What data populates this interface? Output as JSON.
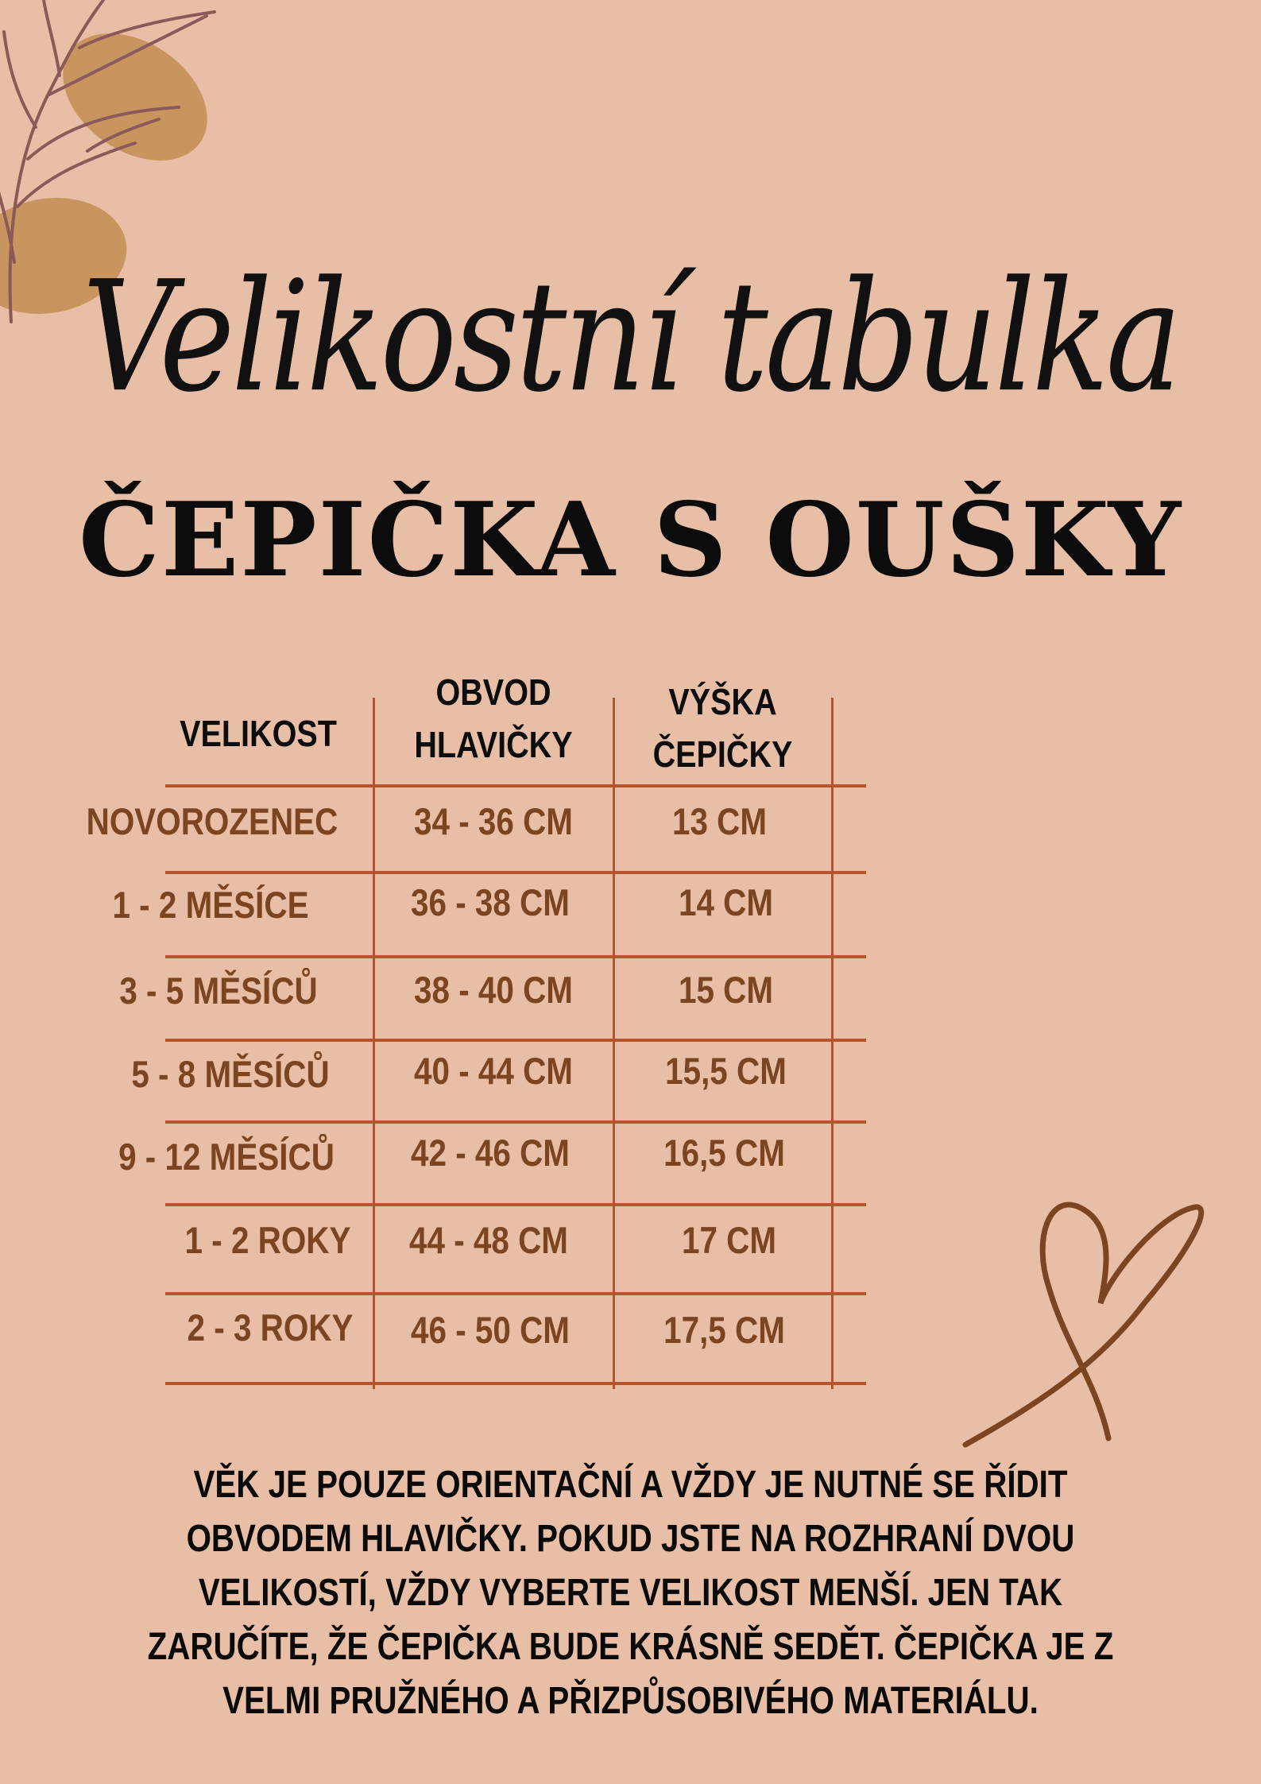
{
  "title": "Velikostní tabulka",
  "subtitle": "ČEPIČKA S OUŠKY",
  "colors": {
    "background": "#e8bea6",
    "table_lines": "#b5532e",
    "cell_text": "#7a4520",
    "blob": "#c9955f",
    "heart": "#7a4520"
  },
  "table": {
    "headers": {
      "size": "VELIKOST",
      "circumference_line1": "OBVOD",
      "circumference_line2": "HLAVIČKY",
      "height_line1": "VÝŠKA",
      "height_line2": "ČEPIČKY"
    },
    "rows": [
      {
        "size": "NOVOROZENEC",
        "circumference": "34 - 36 CM",
        "height": "13 CM"
      },
      {
        "size": "1 - 2 MĚSÍCE",
        "circumference": "36 - 38 CM",
        "height": "14 CM"
      },
      {
        "size": "3 - 5 MĚSÍCŮ",
        "circumference": "38 - 40 CM",
        "height": "15 CM"
      },
      {
        "size": "5 - 8 MĚSÍCŮ",
        "circumference": "40 - 44 CM",
        "height": "15,5 CM"
      },
      {
        "size": "9 - 12 MĚSÍCŮ",
        "circumference": "42 - 46 CM",
        "height": "16,5 CM"
      },
      {
        "size": "1 - 2 ROKY",
        "circumference": "44 - 48 CM",
        "height": "17 CM"
      },
      {
        "size": "2 - 3 ROKY",
        "circumference": "46 - 50 CM",
        "height": "17,5 CM"
      }
    ]
  },
  "note": {
    "lines": [
      "VĚK JE POUZE ORIENTAČNÍ A VŽDY JE NUTNÉ SE ŘÍDIT",
      "OBVODEM HLAVIČKY. POKUD JSTE NA ROZHRANÍ DVOU",
      "VELIKOSTÍ, VŽDY VYBERTE VELIKOST MENŠÍ. JEN TAK",
      "ZARUČÍTE, ŽE ČEPIČKA BUDE KRÁSNĚ SEDĚT. ČEPIČKA JE Z",
      "VELMI PRUŽNÉHO A PŘIZPŮSOBIVÉHO MATERIÁLU."
    ]
  }
}
